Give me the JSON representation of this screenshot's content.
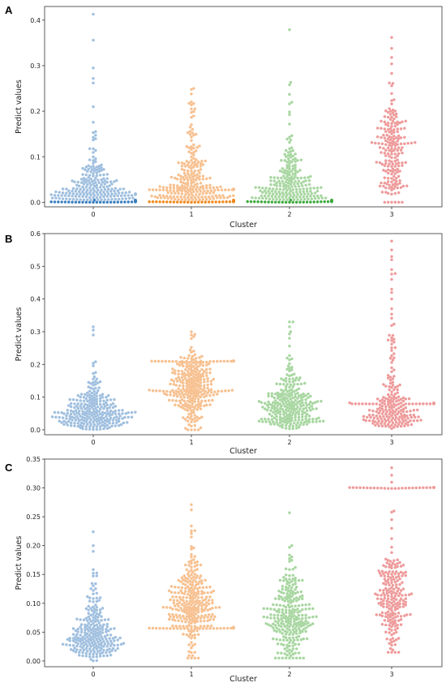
{
  "figure": {
    "panels": [
      {
        "letter": "A"
      },
      {
        "letter": "B"
      },
      {
        "letter": "C"
      }
    ]
  },
  "colors": {
    "cluster_0": "#9fbfdf",
    "cluster_1": "#f7c08f",
    "cluster_2": "#a7d6a0",
    "cluster_3": "#ee9a9a",
    "cluster_0_dark": "#3a7fbf",
    "cluster_1_dark": "#f08a1f",
    "cluster_2_dark": "#3fa93f",
    "axis": "#333333"
  },
  "chart_data": [
    {
      "type": "scatter",
      "subtype": "swarm",
      "panel": "A",
      "title": "",
      "xlabel": "Cluster",
      "ylabel": "Predict values",
      "categories": [
        "0",
        "1",
        "2",
        "3"
      ],
      "ylim": [
        -0.01,
        0.43
      ],
      "yticks": [
        0.0,
        0.1,
        0.2,
        0.3,
        0.4
      ],
      "ytick_labels": [
        "0.0",
        "0.1",
        "0.2",
        "0.3",
        "0.4"
      ],
      "grid": false,
      "legend": "none",
      "series": [
        {
          "category": "0",
          "n": 240,
          "dist": "exp",
          "scale": 0.035,
          "min": 0.0,
          "max": 0.41,
          "floor_band": true,
          "outliers": [
            0.413,
            0.356,
            0.295,
            0.272,
            0.262
          ]
        },
        {
          "category": "1",
          "n": 240,
          "dist": "exp",
          "scale": 0.05,
          "min": 0.0,
          "max": 0.25,
          "floor_band": true,
          "extra_band": 0.028,
          "outliers": [
            0.248,
            0.214,
            0.205
          ]
        },
        {
          "category": "2",
          "n": 220,
          "dist": "exp",
          "scale": 0.045,
          "min": 0.0,
          "max": 0.38,
          "floor_band": true,
          "outliers": [
            0.379,
            0.258,
            0.237
          ]
        },
        {
          "category": "3",
          "n": 190,
          "dist": "uniformish",
          "center": 0.09,
          "spread": 0.09,
          "min": 0.0,
          "max": 0.36,
          "outliers": [
            0.362,
            0.338,
            0.318,
            0.304,
            0.283,
            0.262,
            0.261
          ]
        }
      ]
    },
    {
      "type": "scatter",
      "subtype": "swarm",
      "panel": "B",
      "title": "",
      "xlabel": "Cluster",
      "ylabel": "Predict values",
      "categories": [
        "0",
        "1",
        "2",
        "3"
      ],
      "ylim": [
        -0.015,
        0.6
      ],
      "yticks": [
        0.0,
        0.1,
        0.2,
        0.3,
        0.4,
        0.5,
        0.6
      ],
      "ytick_labels": [
        "0.0",
        "0.1",
        "0.2",
        "0.3",
        "0.4",
        "0.5",
        "0.6"
      ],
      "grid": false,
      "legend": "none",
      "series": [
        {
          "category": "0",
          "n": 260,
          "dist": "gamma",
          "center": 0.06,
          "spread": 0.055,
          "min": 0.0,
          "max": 0.31,
          "outliers": [
            0.315,
            0.305,
            0.29
          ]
        },
        {
          "category": "1",
          "n": 280,
          "dist": "normal",
          "center": 0.13,
          "spread": 0.055,
          "min": 0.0,
          "max": 0.3,
          "extra_band": 0.21,
          "outliers": [
            0.3,
            0.292,
            0.285
          ]
        },
        {
          "category": "2",
          "n": 260,
          "dist": "gamma",
          "center": 0.08,
          "spread": 0.05,
          "min": 0.0,
          "max": 0.33,
          "outliers": [
            0.33,
            0.315,
            0.3,
            0.28
          ]
        },
        {
          "category": "3",
          "n": 200,
          "dist": "exp",
          "center": 0.08,
          "spread": 0.12,
          "min": 0.0,
          "max": 0.58,
          "extra_band": 0.08,
          "outliers": [
            0.577,
            0.55,
            0.53,
            0.52,
            0.49,
            0.478,
            0.476,
            0.46,
            0.43,
            0.42,
            0.4
          ]
        }
      ]
    },
    {
      "type": "scatter",
      "subtype": "swarm",
      "panel": "C",
      "title": "",
      "xlabel": "Cluster",
      "ylabel": "Predict values",
      "categories": [
        "0",
        "1",
        "2",
        "3"
      ],
      "ylim": [
        -0.01,
        0.35
      ],
      "yticks": [
        0.0,
        0.05,
        0.1,
        0.15,
        0.2,
        0.25,
        0.3,
        0.35
      ],
      "ytick_labels": [
        "0.00",
        "0.05",
        "0.10",
        "0.15",
        "0.20",
        "0.25",
        "0.30",
        "0.35"
      ],
      "grid": false,
      "legend": "none",
      "series": [
        {
          "category": "0",
          "n": 240,
          "dist": "gamma",
          "center": 0.05,
          "spread": 0.04,
          "min": 0.0,
          "max": 0.225,
          "outliers": [
            0.224,
            0.2,
            0.19
          ]
        },
        {
          "category": "1",
          "n": 280,
          "dist": "normal",
          "center": 0.1,
          "spread": 0.04,
          "min": 0.005,
          "max": 0.27,
          "extra_band": 0.057,
          "outliers": [
            0.271,
            0.262,
            0.234,
            0.226
          ]
        },
        {
          "category": "2",
          "n": 260,
          "dist": "normal",
          "center": 0.08,
          "spread": 0.04,
          "min": 0.005,
          "max": 0.26,
          "outliers": [
            0.257,
            0.2,
            0.197
          ]
        },
        {
          "category": "3",
          "n": 200,
          "dist": "normal",
          "center": 0.11,
          "spread": 0.045,
          "min": 0.015,
          "max": 0.335,
          "extra_band": 0.3,
          "outliers": [
            0.335,
            0.322,
            0.31,
            0.26,
            0.258,
            0.245,
            0.23
          ]
        }
      ]
    }
  ]
}
